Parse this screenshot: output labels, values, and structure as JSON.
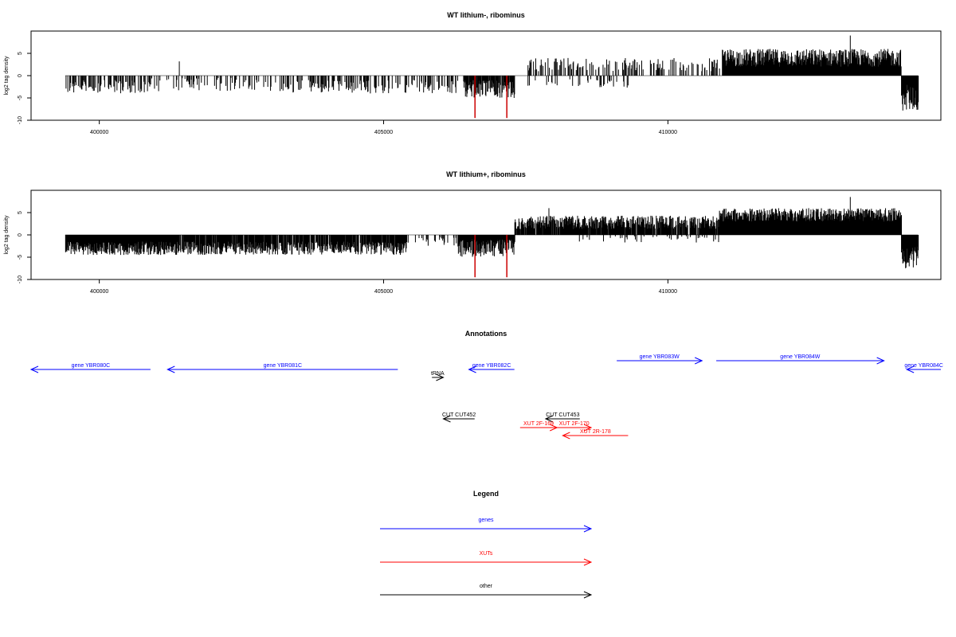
{
  "colors": {
    "genes": "#0000ff",
    "xuts": "#ff0000",
    "other": "#000000",
    "bars": "#000000",
    "highlight": "#cc0000"
  },
  "chart_data": [
    {
      "type": "bar",
      "title": "WT lithium-, ribominus",
      "ylabel": "log2 tag density",
      "xlim": [
        398800,
        414800
      ],
      "ylim": [
        -10,
        10
      ],
      "xticks": [
        400000,
        405000,
        410000
      ],
      "yticks": [
        -10,
        -5,
        0,
        5
      ],
      "segments": [
        {
          "range": [
            399400,
            400900
          ],
          "sign": -1,
          "mean": 2.5,
          "spread": 1.5,
          "density": 0.45
        },
        {
          "range": [
            400900,
            403200
          ],
          "sign": -1,
          "mean": 2.0,
          "spread": 1.5,
          "density": 0.25
        },
        {
          "range": [
            403200,
            406300
          ],
          "sign": -1,
          "mean": 2.5,
          "spread": 1.5,
          "density": 0.35
        },
        {
          "range": [
            406400,
            407300
          ],
          "sign": -1,
          "mean": 3.0,
          "spread": 2.0,
          "density": 0.9
        },
        {
          "range": [
            407500,
            409300
          ],
          "sign": -1,
          "mean": 1.8,
          "spread": 1.0,
          "density": 0.15
        },
        {
          "range": [
            407500,
            410900
          ],
          "sign": 1,
          "mean": 2.5,
          "spread": 1.5,
          "density": 0.3
        },
        {
          "range": [
            410950,
            414100
          ],
          "sign": 1,
          "mean": 4.0,
          "spread": 2.0,
          "density": 1.0
        },
        {
          "range": [
            414100,
            414400
          ],
          "sign": -1,
          "mean": 5.0,
          "spread": 3.0,
          "density": 1.0
        }
      ],
      "peaks": [
        {
          "x": 413200,
          "y": 9
        },
        {
          "x": 406600,
          "y": -9.5,
          "highlight": true
        },
        {
          "x": 407160,
          "y": -9.5,
          "highlight": true
        },
        {
          "x": 401400,
          "y": 3.2
        }
      ]
    },
    {
      "type": "bar",
      "title": "WT lithium+, ribominus",
      "ylabel": "log2 tag density",
      "xlim": [
        398800,
        414800
      ],
      "ylim": [
        -10,
        10
      ],
      "xticks": [
        400000,
        405000,
        410000
      ],
      "yticks": [
        -10,
        -5,
        0,
        5
      ],
      "segments": [
        {
          "range": [
            399400,
            401200
          ],
          "sign": -1,
          "mean": 3.0,
          "spread": 1.5,
          "density": 1.0
        },
        {
          "range": [
            401200,
            405400
          ],
          "sign": -1,
          "mean": 3.0,
          "spread": 1.5,
          "density": 0.85
        },
        {
          "range": [
            405400,
            406300
          ],
          "sign": -1,
          "mean": 1.5,
          "spread": 1.0,
          "density": 0.2
        },
        {
          "range": [
            406300,
            407300
          ],
          "sign": -1,
          "mean": 3.0,
          "spread": 2.0,
          "density": 1.0
        },
        {
          "range": [
            407300,
            410900
          ],
          "sign": 1,
          "mean": 2.8,
          "spread": 1.5,
          "density": 0.9
        },
        {
          "range": [
            408300,
            410900
          ],
          "sign": -1,
          "mean": 1.0,
          "spread": 0.8,
          "density": 0.1
        },
        {
          "range": [
            410900,
            414100
          ],
          "sign": 1,
          "mean": 4.5,
          "spread": 1.5,
          "density": 1.0
        },
        {
          "range": [
            414100,
            414400
          ],
          "sign": -1,
          "mean": 5.0,
          "spread": 2.5,
          "density": 1.0
        }
      ],
      "peaks": [
        {
          "x": 413200,
          "y": 8.5
        },
        {
          "x": 406600,
          "y": -9.5,
          "highlight": true
        },
        {
          "x": 407160,
          "y": -9.5,
          "highlight": true
        },
        {
          "x": 407900,
          "y": 6
        }
      ]
    }
  ],
  "annotations": {
    "title": "Annotations",
    "features": [
      {
        "label": "gene YBR080C",
        "start": 398800,
        "end": 400900,
        "dir": "left",
        "color": "genes",
        "row": 0
      },
      {
        "label": "gene YBR081C",
        "start": 401200,
        "end": 405250,
        "dir": "left",
        "color": "genes",
        "row": 0
      },
      {
        "label": "tRNA",
        "start": 405850,
        "end": 406050,
        "dir": "right",
        "color": "other",
        "row": 1
      },
      {
        "label": "gene YBR082C",
        "start": 406500,
        "end": 407300,
        "dir": "left",
        "color": "genes",
        "row": 0
      },
      {
        "label": "gene YBR083W",
        "start": 409100,
        "end": 410600,
        "dir": "right",
        "color": "genes",
        "row": -1
      },
      {
        "label": "gene YBR084W",
        "start": 410850,
        "end": 413800,
        "dir": "right",
        "color": "genes",
        "row": -1
      },
      {
        "label": "gene YBR084C",
        "start": 414200,
        "end": 414800,
        "dir": "left",
        "color": "genes",
        "row": 0
      },
      {
        "label": "CUT CUT452",
        "start": 406050,
        "end": 406600,
        "dir": "left",
        "color": "other",
        "row": 3
      },
      {
        "label": "CUT CUT453",
        "start": 407850,
        "end": 408450,
        "dir": "left",
        "color": "other",
        "row": 3
      },
      {
        "label": "XUT 2F-169",
        "start": 407400,
        "end": 408050,
        "dir": "right",
        "color": "xuts",
        "row": 4
      },
      {
        "label": "XUT 2F-170",
        "start": 408050,
        "end": 408650,
        "dir": "right",
        "color": "xuts",
        "row": 4
      },
      {
        "label": "XUT 2R-178",
        "start": 408150,
        "end": 409300,
        "dir": "left",
        "color": "xuts",
        "row": 5
      }
    ]
  },
  "legend": {
    "title": "Legend",
    "items": [
      {
        "label": "genes",
        "color": "genes"
      },
      {
        "label": "XUTs",
        "color": "xuts"
      },
      {
        "label": "other",
        "color": "other"
      }
    ]
  }
}
